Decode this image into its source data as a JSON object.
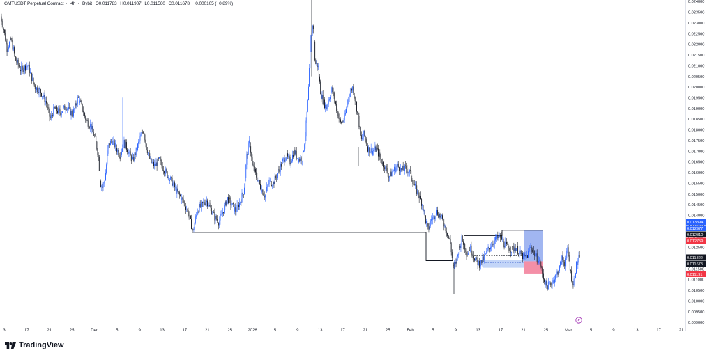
{
  "header": {
    "symbol": "GMTUSDT Perpetual Contract",
    "timeframe": "4h",
    "exchange": "Bybit",
    "open": "O0.011783",
    "high": "H0.011907",
    "low": "L0.011560",
    "close": "C0.011678",
    "change": "−0.000105 (−0.89%)"
  },
  "brand": {
    "name": "TradingView",
    "logo_icon": "tradingview-logo-icon"
  },
  "colors": {
    "up_candle": "#2962ff",
    "down_candle": "#131722",
    "price_line": "#131722",
    "long_target_zone": "#6f8fea",
    "long_stop_zone": "#f06a8a",
    "entry_zone": "#a9c3f5",
    "grid_text": "#131722"
  },
  "chart_data": {
    "type": "candlestick",
    "title": "GMTUSDT Perpetual Contract · 4h · Bybit",
    "ylim": [
      0.0088,
      0.024
    ],
    "grid": false,
    "y_ticks": [
      "0.024000",
      "0.023500",
      "0.023000",
      "0.022500",
      "0.022000",
      "0.021500",
      "0.021000",
      "0.020500",
      "0.020000",
      "0.019500",
      "0.019000",
      "0.018500",
      "0.018000",
      "0.017500",
      "0.017000",
      "0.016500",
      "0.016000",
      "0.015500",
      "0.015000",
      "0.014500",
      "0.014000",
      "0.013500",
      "0.013000",
      "0.012500",
      "0.012000",
      "0.011500",
      "0.011000",
      "0.010500",
      "0.010000",
      "0.009500",
      "0.009000"
    ],
    "x_ticks": [
      "3",
      "17",
      "21",
      "25",
      "Dec",
      "5",
      "9",
      "13",
      "17",
      "21",
      "25",
      "2026",
      "5",
      "9",
      "13",
      "17",
      "21",
      "25",
      "Feb",
      "5",
      "9",
      "13",
      "17",
      "21",
      "25",
      "Mar",
      "5",
      "9",
      "13",
      "17",
      "21"
    ],
    "price_path": [
      [
        0,
        0.0233
      ],
      [
        5,
        0.0228
      ],
      [
        10,
        0.0218
      ],
      [
        16,
        0.0222
      ],
      [
        22,
        0.0213
      ],
      [
        30,
        0.0208
      ],
      [
        40,
        0.021
      ],
      [
        50,
        0.02
      ],
      [
        58,
        0.0198
      ],
      [
        66,
        0.0193
      ],
      [
        72,
        0.0185
      ],
      [
        78,
        0.019
      ],
      [
        86,
        0.0188
      ],
      [
        95,
        0.0191
      ],
      [
        104,
        0.0187
      ],
      [
        112,
        0.0195
      ],
      [
        118,
        0.019
      ],
      [
        124,
        0.0184
      ],
      [
        130,
        0.0182
      ],
      [
        137,
        0.0175
      ],
      [
        141,
        0.0168
      ],
      [
        144,
        0.0155
      ],
      [
        147,
        0.0153
      ],
      [
        151,
        0.0158
      ],
      [
        155,
        0.0172
      ],
      [
        160,
        0.0175
      ],
      [
        166,
        0.0172
      ],
      [
        172,
        0.0168
      ],
      [
        178,
        0.0174
      ],
      [
        184,
        0.017
      ],
      [
        190,
        0.0165
      ],
      [
        196,
        0.0171
      ],
      [
        202,
        0.0177
      ],
      [
        206,
        0.018
      ],
      [
        210,
        0.0172
      ],
      [
        216,
        0.0165
      ],
      [
        222,
        0.0163
      ],
      [
        228,
        0.0166
      ],
      [
        234,
        0.0162
      ],
      [
        240,
        0.0159
      ],
      [
        246,
        0.0156
      ],
      [
        252,
        0.0152
      ],
      [
        258,
        0.0149
      ],
      [
        264,
        0.0146
      ],
      [
        270,
        0.0141
      ],
      [
        274,
        0.0136
      ],
      [
        277,
        0.0132
      ],
      [
        280,
        0.0138
      ],
      [
        284,
        0.0143
      ],
      [
        290,
        0.0145
      ],
      [
        296,
        0.0147
      ],
      [
        302,
        0.0143
      ],
      [
        308,
        0.0139
      ],
      [
        314,
        0.0137
      ],
      [
        320,
        0.0142
      ],
      [
        326,
        0.0148
      ],
      [
        332,
        0.0145
      ],
      [
        338,
        0.0142
      ],
      [
        344,
        0.0146
      ],
      [
        350,
        0.0152
      ],
      [
        354,
        0.0168
      ],
      [
        358,
        0.0175
      ],
      [
        362,
        0.0163
      ],
      [
        368,
        0.0158
      ],
      [
        374,
        0.0153
      ],
      [
        380,
        0.0149
      ],
      [
        386,
        0.0156
      ],
      [
        392,
        0.0155
      ],
      [
        398,
        0.016
      ],
      [
        404,
        0.0164
      ],
      [
        410,
        0.0168
      ],
      [
        416,
        0.0165
      ],
      [
        422,
        0.017
      ],
      [
        428,
        0.0166
      ],
      [
        434,
        0.0167
      ],
      [
        438,
        0.0178
      ],
      [
        442,
        0.0196
      ],
      [
        446,
        0.0224
      ],
      [
        449,
        0.023
      ],
      [
        452,
        0.0211
      ],
      [
        456,
        0.021
      ],
      [
        460,
        0.0197
      ],
      [
        464,
        0.0193
      ],
      [
        468,
        0.019
      ],
      [
        472,
        0.0195
      ],
      [
        476,
        0.0199
      ],
      [
        480,
        0.0194
      ],
      [
        484,
        0.0188
      ],
      [
        488,
        0.0183
      ],
      [
        494,
        0.0185
      ],
      [
        500,
        0.0196
      ],
      [
        506,
        0.02
      ],
      [
        510,
        0.0193
      ],
      [
        514,
        0.0185
      ],
      [
        518,
        0.0175
      ],
      [
        522,
        0.0178
      ],
      [
        528,
        0.0171
      ],
      [
        534,
        0.017
      ],
      [
        540,
        0.0171
      ],
      [
        546,
        0.0166
      ],
      [
        552,
        0.0163
      ],
      [
        558,
        0.0158
      ],
      [
        564,
        0.0161
      ],
      [
        570,
        0.0163
      ],
      [
        576,
        0.0161
      ],
      [
        582,
        0.0162
      ],
      [
        588,
        0.016
      ],
      [
        594,
        0.0154
      ],
      [
        600,
        0.015
      ],
      [
        606,
        0.0145
      ],
      [
        610,
        0.0138
      ],
      [
        614,
        0.0133
      ],
      [
        618,
        0.0138
      ],
      [
        622,
        0.0139
      ],
      [
        626,
        0.0142
      ],
      [
        630,
        0.014
      ],
      [
        636,
        0.0137
      ],
      [
        642,
        0.0131
      ],
      [
        646,
        0.0127
      ],
      [
        650,
        0.0115
      ],
      [
        654,
        0.0118
      ],
      [
        658,
        0.0124
      ],
      [
        662,
        0.0129
      ],
      [
        666,
        0.0126
      ],
      [
        670,
        0.0122
      ],
      [
        674,
        0.0125
      ],
      [
        678,
        0.0122
      ],
      [
        682,
        0.0119
      ],
      [
        688,
        0.0117
      ],
      [
        694,
        0.012
      ],
      [
        700,
        0.0124
      ],
      [
        706,
        0.0127
      ],
      [
        712,
        0.0129
      ],
      [
        718,
        0.013
      ],
      [
        722,
        0.0127
      ],
      [
        728,
        0.0125
      ],
      [
        734,
        0.0124
      ],
      [
        740,
        0.0125
      ],
      [
        746,
        0.0122
      ],
      [
        752,
        0.012
      ],
      [
        756,
        0.0121
      ],
      [
        760,
        0.0125
      ],
      [
        764,
        0.0124
      ],
      [
        768,
        0.0121
      ],
      [
        772,
        0.0119
      ],
      [
        776,
        0.0116
      ],
      [
        780,
        0.011
      ],
      [
        784,
        0.0107
      ],
      [
        790,
        0.0108
      ],
      [
        796,
        0.0111
      ],
      [
        802,
        0.0115
      ],
      [
        806,
        0.012
      ],
      [
        810,
        0.0117
      ],
      [
        814,
        0.0124
      ],
      [
        818,
        0.0114
      ],
      [
        822,
        0.0107
      ],
      [
        826,
        0.0116
      ],
      [
        830,
        0.012
      ],
      [
        833,
        0.0117
      ]
    ],
    "horizontal_levels": [
      {
        "price": 0.0132,
        "from": "Nov 19",
        "to": "Feb 1"
      },
      {
        "price": 0.0125,
        "from": "Feb 1",
        "to": "Feb 5"
      }
    ],
    "price_labels": [
      {
        "value": "0.013394",
        "color": "#2962ff"
      },
      {
        "value": "0.012977",
        "color": "#2962ff"
      },
      {
        "value": "0.012810",
        "color": "#131722"
      },
      {
        "value": "0.012759",
        "color": "#f23645"
      },
      {
        "value": "0.011822",
        "color": "#131722"
      },
      {
        "value": "0.011678",
        "color": "#131722"
      },
      {
        "value": "0.011191",
        "color": "#f23645"
      }
    ],
    "last_price": 0.011678
  }
}
